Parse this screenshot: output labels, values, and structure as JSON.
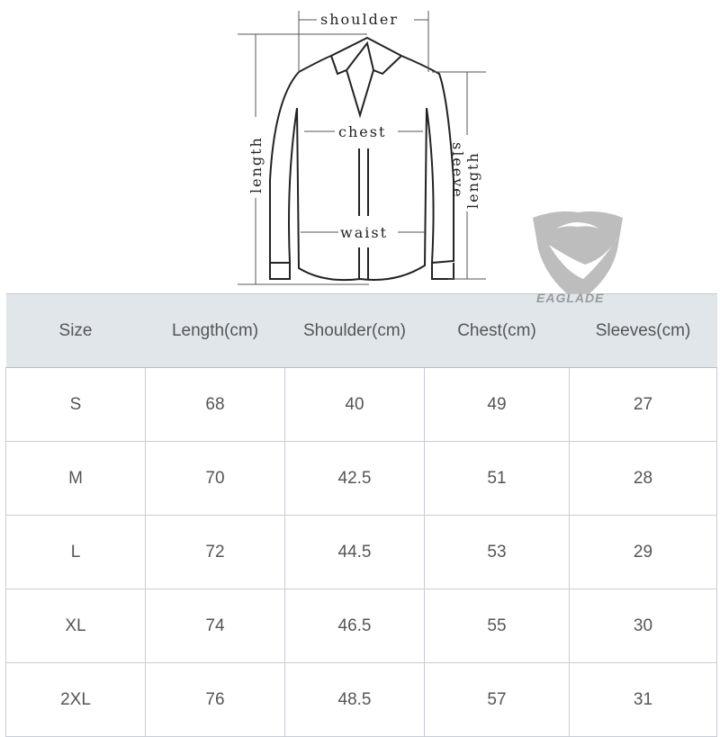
{
  "diagram": {
    "labels": {
      "shoulder": "shoulder",
      "chest": "chest",
      "waist": "waist",
      "length": "length",
      "sleeve": "sleeve",
      "sleeve_length": "length"
    }
  },
  "logo": {
    "text": "EAGLADE",
    "icon": "eagle-shield-logo",
    "color": "#9a9a9a"
  },
  "table": {
    "headers": [
      "Size",
      "Length(cm)",
      "Shoulder(cm)",
      "Chest(cm)",
      "Sleeves(cm)"
    ],
    "rows": [
      [
        "S",
        "68",
        "40",
        "49",
        "27"
      ],
      [
        "M",
        "70",
        "42.5",
        "51",
        "28"
      ],
      [
        "L",
        "72",
        "44.5",
        "53",
        "29"
      ],
      [
        "XL",
        "74",
        "46.5",
        "55",
        "30"
      ],
      [
        "2XL",
        "76",
        "48.5",
        "57",
        "31"
      ]
    ],
    "header_bg": "#e1e6eb"
  }
}
